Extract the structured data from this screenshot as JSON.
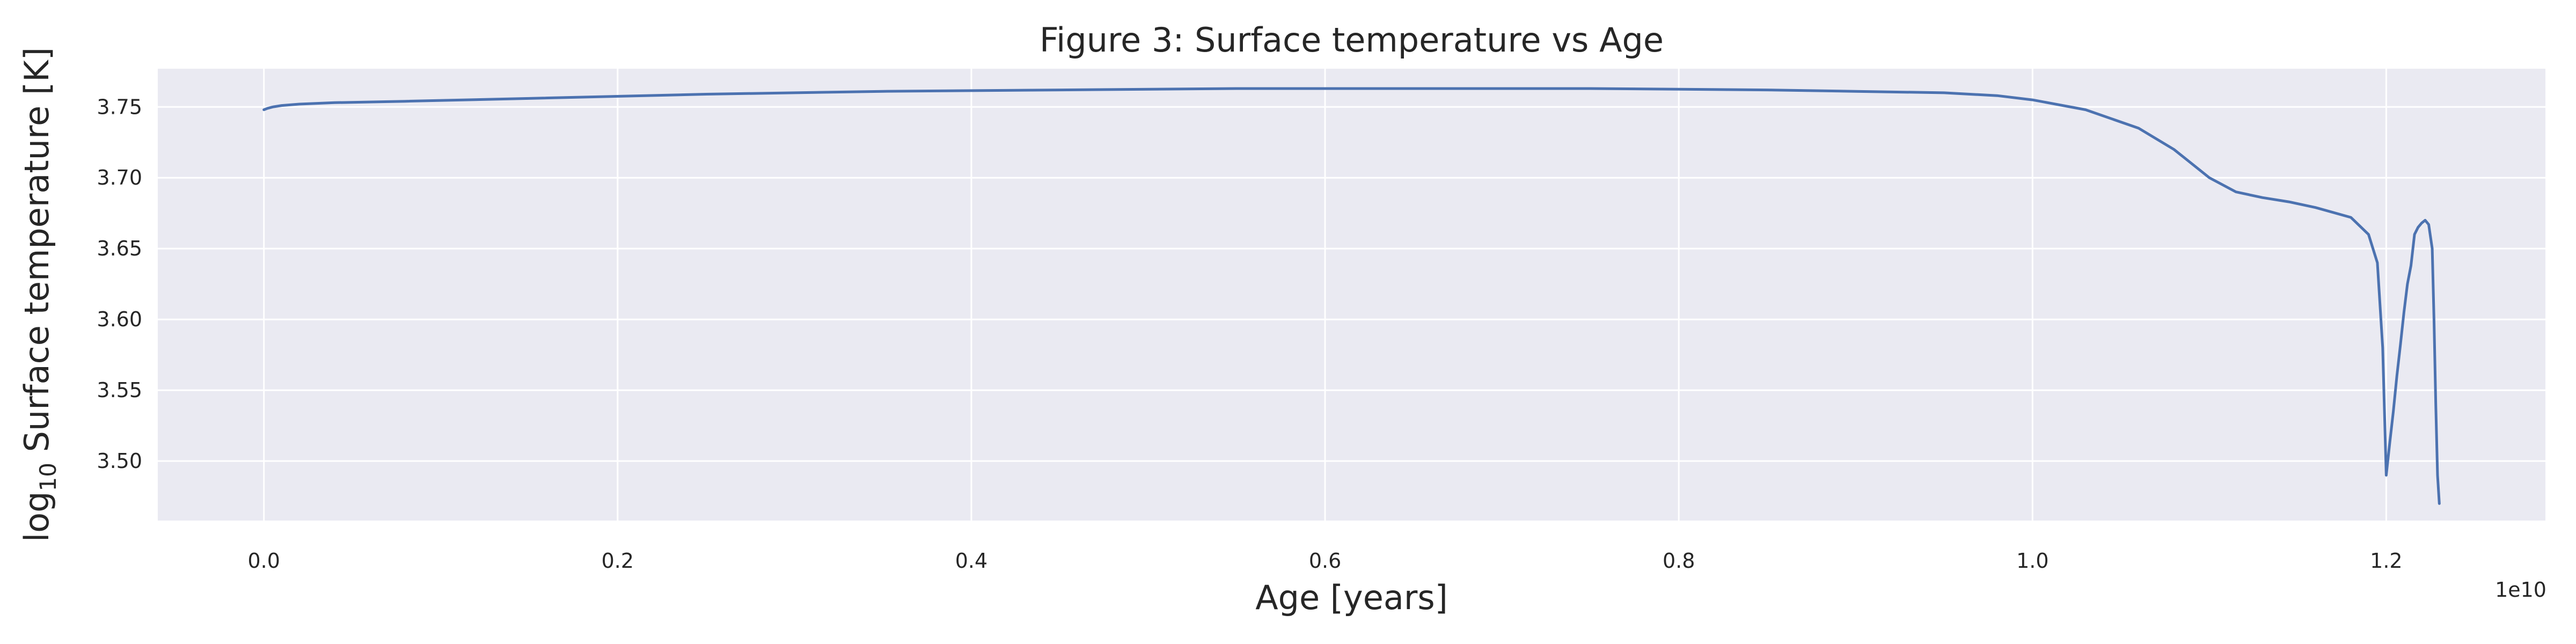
{
  "chart_data": {
    "type": "line",
    "title": "Figure 3: Surface temperature vs Age",
    "xlabel": "Age [years]",
    "ylabel_prefix": "log",
    "ylabel_sub": "10",
    "ylabel_rest": " Surface temperature [K]",
    "x_offset_label": "1e10",
    "x_scale": 10000000000,
    "xlim": [
      -0.06,
      1.29
    ],
    "ylim": [
      3.458,
      3.777
    ],
    "xticks": [
      0.0,
      0.2,
      0.4,
      0.6,
      0.8,
      1.0,
      1.2
    ],
    "xtick_labels": [
      "0.0",
      "0.2",
      "0.4",
      "0.6",
      "0.8",
      "1.0",
      "1.2"
    ],
    "yticks": [
      3.5,
      3.55,
      3.6,
      3.65,
      3.7,
      3.75
    ],
    "ytick_labels": [
      "3.50",
      "3.55",
      "3.60",
      "3.65",
      "3.70",
      "3.75"
    ],
    "grid": true,
    "colors": {
      "line": "#4c72b0",
      "background": "#eaeaf2",
      "grid": "#ffffff"
    },
    "series": [
      {
        "x": [
          0.0,
          0.002,
          0.005,
          0.01,
          0.02,
          0.04,
          0.08,
          0.15,
          0.25,
          0.35,
          0.45,
          0.55,
          0.65,
          0.7,
          0.75,
          0.85,
          0.9,
          0.95,
          0.98,
          1.0,
          1.03,
          1.06,
          1.08,
          1.1,
          1.115,
          1.13,
          1.145,
          1.16,
          1.18,
          1.19,
          1.195,
          1.198,
          1.2,
          1.202,
          1.204,
          1.206,
          1.208,
          1.21,
          1.212,
          1.214,
          1.216,
          1.218,
          1.22,
          1.222,
          1.224,
          1.226,
          1.227,
          1.228,
          1.229,
          1.23
        ],
        "y": [
          3.748,
          3.749,
          3.75,
          3.751,
          3.752,
          3.753,
          3.754,
          3.756,
          3.759,
          3.761,
          3.762,
          3.763,
          3.763,
          3.763,
          3.763,
          3.762,
          3.761,
          3.76,
          3.758,
          3.755,
          3.748,
          3.735,
          3.72,
          3.7,
          3.69,
          3.686,
          3.683,
          3.679,
          3.672,
          3.66,
          3.64,
          3.58,
          3.49,
          3.513,
          3.535,
          3.56,
          3.582,
          3.605,
          3.625,
          3.638,
          3.66,
          3.665,
          3.668,
          3.67,
          3.667,
          3.65,
          3.6,
          3.54,
          3.49,
          3.47
        ]
      }
    ]
  }
}
